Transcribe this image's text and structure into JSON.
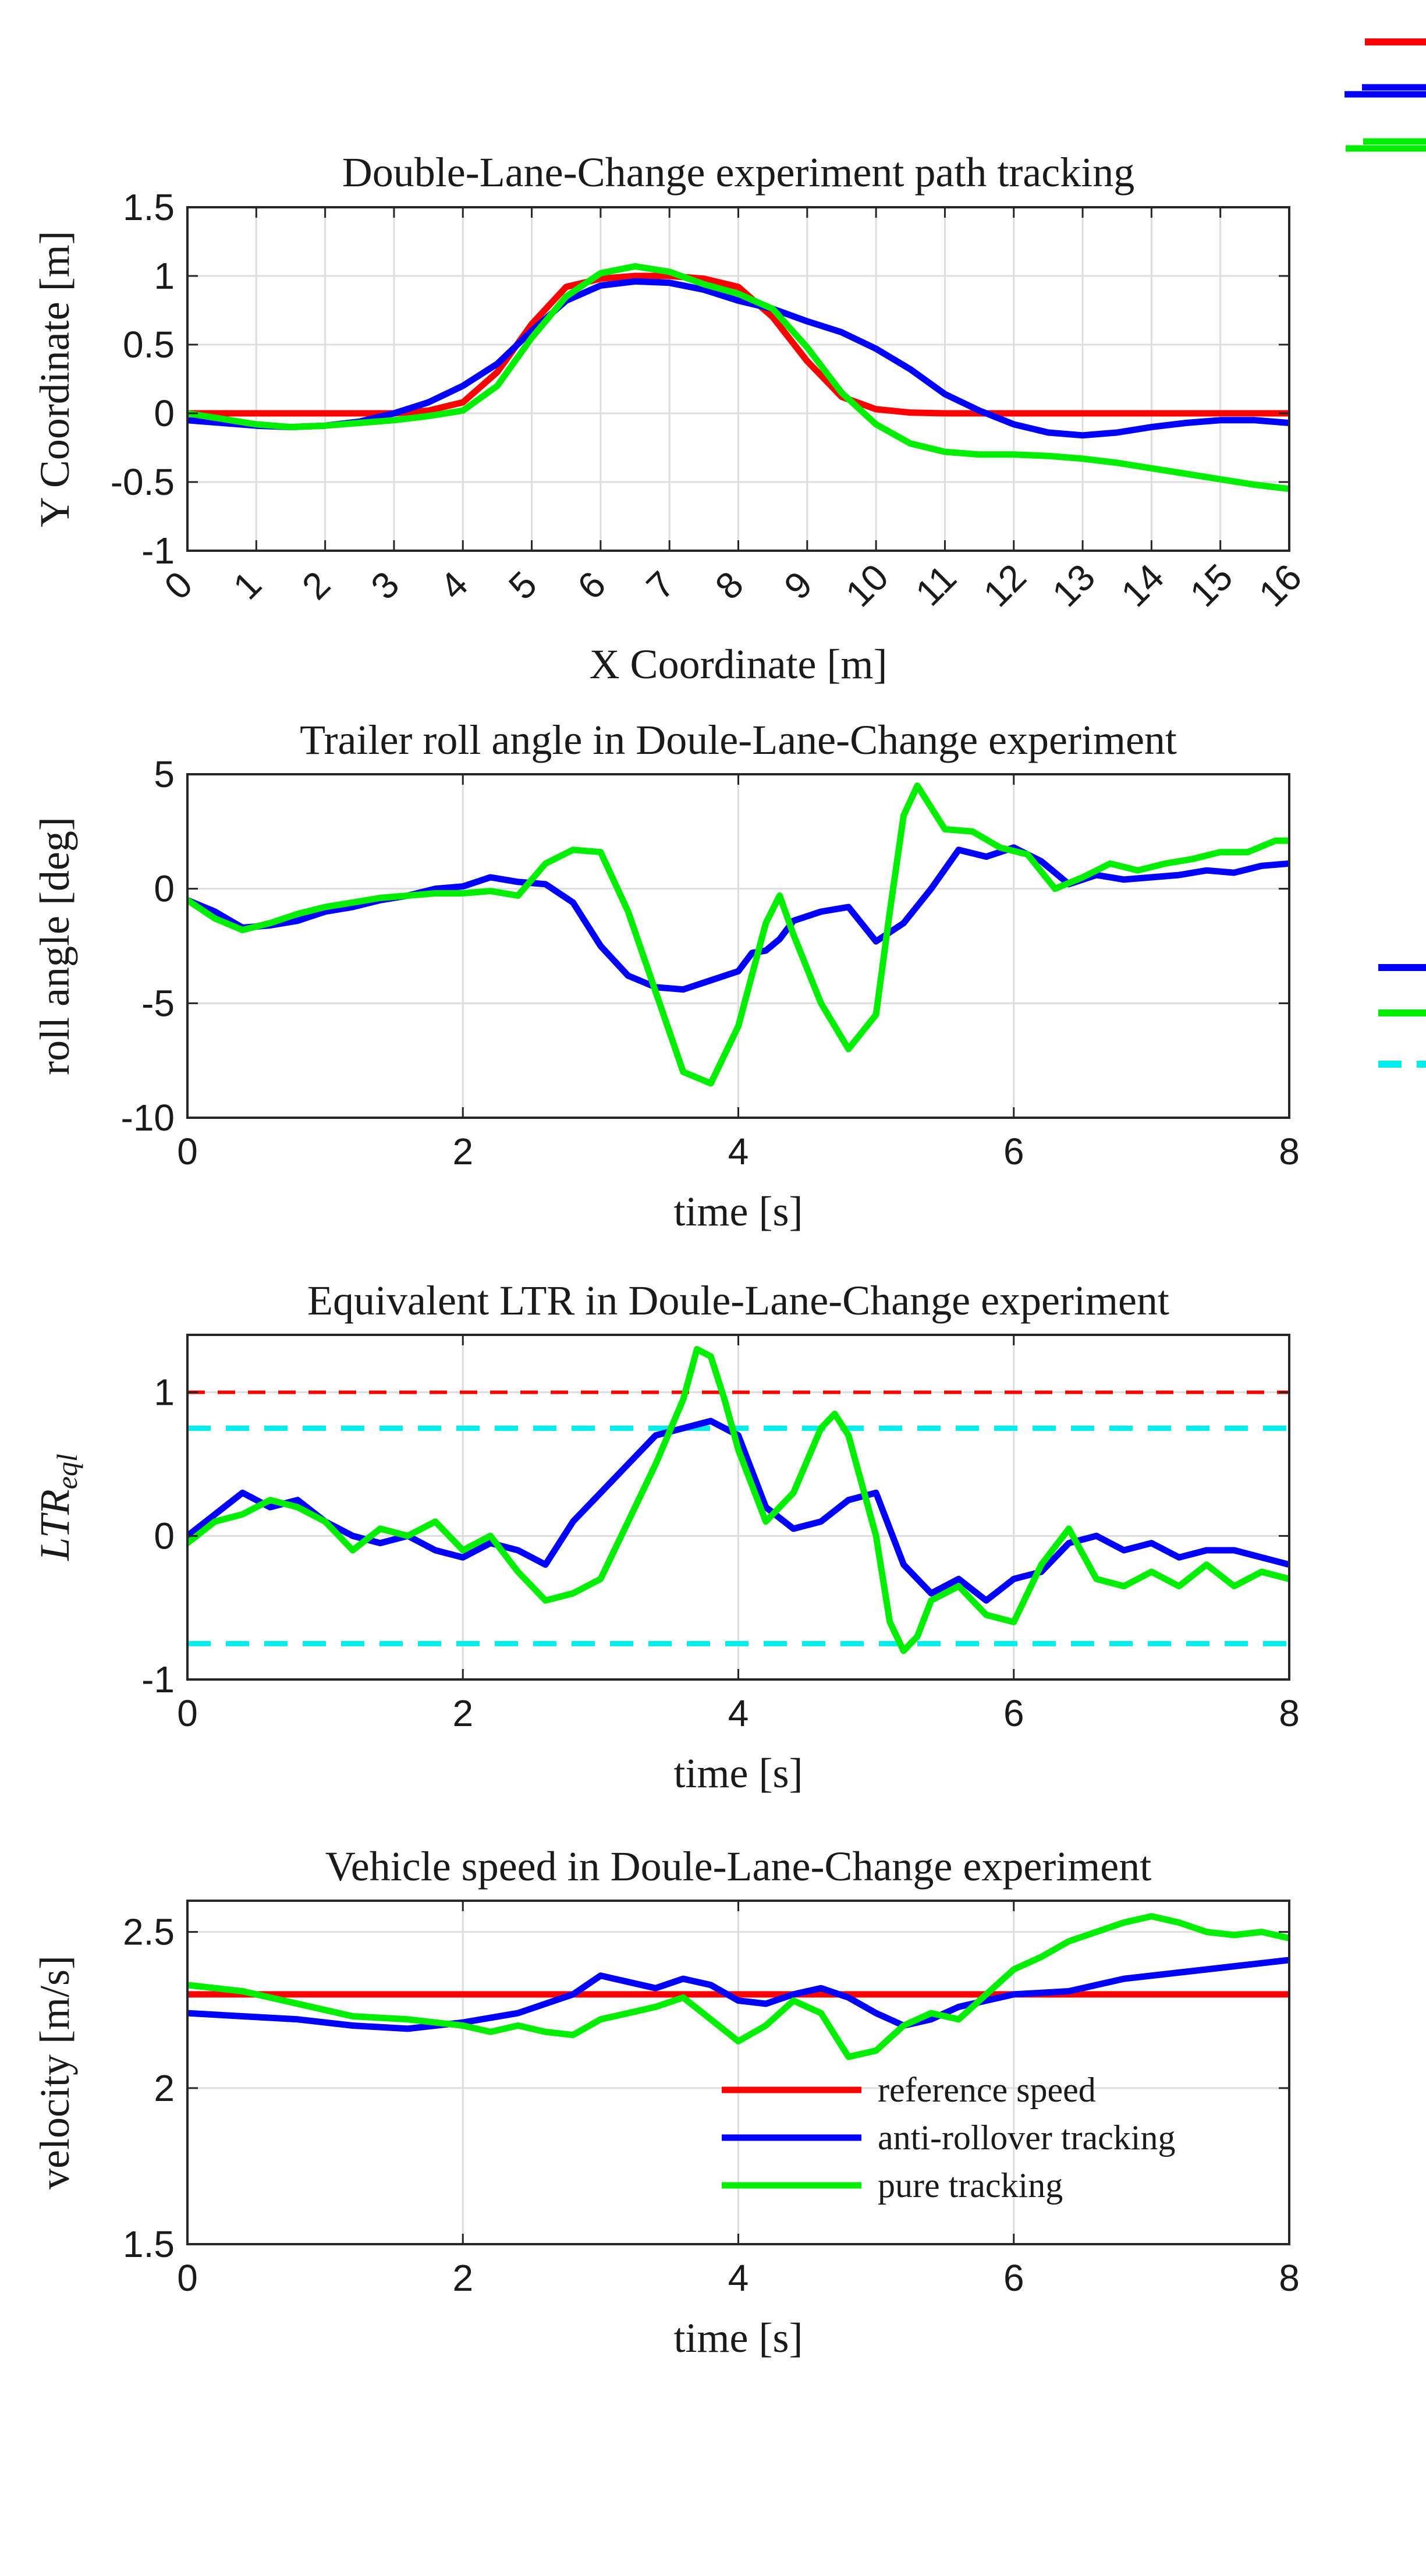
{
  "chart_data": [
    {
      "type": "line",
      "title": "Double-Lane-Change experiment path tracking",
      "xlabel": "X Coordinate [m]",
      "ylabel": "Y Coordinate [m]",
      "xlim": [
        0,
        16
      ],
      "ylim": [
        -1,
        1.5
      ],
      "xticks": [
        0,
        1,
        2,
        3,
        4,
        5,
        6,
        7,
        8,
        9,
        10,
        11,
        12,
        13,
        14,
        15,
        16
      ],
      "xtick_labels": [
        "0",
        "1",
        "2",
        "3",
        "4",
        "5",
        "6",
        "7",
        "8",
        "9",
        "10",
        "11",
        "12",
        "13",
        "14",
        "15",
        "16"
      ],
      "yticks": [
        -1,
        -0.5,
        0,
        0.5,
        1,
        1.5
      ],
      "ytick_labels": [
        "-1",
        "-0.5",
        "0",
        "0.5",
        "1",
        "1.5"
      ],
      "grid": true,
      "series": [
        {
          "color": "#ff0000",
          "x": [
            0,
            1,
            2,
            3,
            3.5,
            4,
            4.5,
            5,
            5.5,
            6,
            6.5,
            7,
            7.5,
            8,
            8.5,
            9,
            9.5,
            10,
            10.5,
            11,
            12,
            13,
            14,
            15,
            16
          ],
          "y": [
            0,
            0,
            0,
            0,
            0.02,
            0.08,
            0.3,
            0.65,
            0.92,
            0.98,
            1.0,
            1.0,
            0.98,
            0.92,
            0.7,
            0.38,
            0.12,
            0.03,
            0.005,
            0,
            0,
            0,
            0,
            0,
            0
          ]
        },
        {
          "color": "#0000ff",
          "x": [
            0,
            0.5,
            1,
            1.5,
            2,
            2.5,
            3,
            3.5,
            4,
            4.5,
            5,
            5.5,
            6,
            6.5,
            7,
            7.5,
            8,
            8.5,
            9,
            9.5,
            10,
            10.5,
            11,
            11.5,
            12,
            12.5,
            13,
            13.5,
            14,
            14.5,
            15,
            15.5,
            16
          ],
          "y": [
            -0.05,
            -0.07,
            -0.09,
            -0.1,
            -0.09,
            -0.06,
            0,
            0.08,
            0.2,
            0.36,
            0.6,
            0.82,
            0.93,
            0.96,
            0.95,
            0.9,
            0.82,
            0.76,
            0.67,
            0.59,
            0.47,
            0.32,
            0.14,
            0.02,
            -0.08,
            -0.14,
            -0.16,
            -0.14,
            -0.1,
            -0.07,
            -0.05,
            -0.05,
            -0.07
          ]
        },
        {
          "color": "#00ee00",
          "x": [
            0,
            0.5,
            1,
            1.5,
            2,
            2.5,
            3,
            3.5,
            4,
            4.5,
            5,
            5.5,
            6,
            6.5,
            7,
            7.5,
            8,
            8.5,
            9,
            9.5,
            10,
            10.5,
            11,
            11.5,
            12,
            12.5,
            13,
            13.5,
            14,
            14.5,
            15,
            15.5,
            16
          ],
          "y": [
            0,
            -0.04,
            -0.08,
            -0.1,
            -0.09,
            -0.07,
            -0.05,
            -0.02,
            0.02,
            0.2,
            0.55,
            0.85,
            1.02,
            1.07,
            1.03,
            0.94,
            0.87,
            0.76,
            0.48,
            0.15,
            -0.08,
            -0.22,
            -0.28,
            -0.3,
            -0.3,
            -0.31,
            -0.33,
            -0.36,
            -0.4,
            -0.44,
            -0.48,
            -0.52,
            -0.55
          ]
        }
      ]
    },
    {
      "type": "line",
      "title": "Trailer roll angle in Doule-Lane-Change experiment",
      "xlabel": "time [s]",
      "ylabel": "roll angle [deg]",
      "xlim": [
        0,
        8
      ],
      "ylim": [
        -10,
        5
      ],
      "xticks": [
        0,
        2,
        4,
        6,
        8
      ],
      "xtick_labels": [
        "0",
        "2",
        "4",
        "6",
        "8"
      ],
      "yticks": [
        -10,
        -5,
        0,
        5
      ],
      "ytick_labels": [
        "-10",
        "-5",
        "0",
        "5"
      ],
      "grid": true,
      "series": [
        {
          "color": "#0000ff",
          "x": [
            0,
            0.2,
            0.4,
            0.6,
            0.8,
            1.0,
            1.2,
            1.4,
            1.6,
            1.8,
            2.0,
            2.2,
            2.4,
            2.6,
            2.8,
            3.0,
            3.2,
            3.4,
            3.6,
            3.8,
            4.0,
            4.1,
            4.2,
            4.3,
            4.4,
            4.6,
            4.8,
            5.0,
            5.2,
            5.4,
            5.6,
            5.8,
            6.0,
            6.2,
            6.4,
            6.6,
            6.8,
            7.0,
            7.2,
            7.4,
            7.6,
            7.8,
            8.0
          ],
          "y": [
            -0.5,
            -1.0,
            -1.7,
            -1.6,
            -1.4,
            -1.0,
            -0.8,
            -0.5,
            -0.3,
            0,
            0.1,
            0.5,
            0.3,
            0.2,
            -0.6,
            -2.5,
            -3.8,
            -4.3,
            -4.4,
            -4.0,
            -3.6,
            -2.8,
            -2.7,
            -2.2,
            -1.4,
            -1.0,
            -0.8,
            -2.3,
            -1.5,
            0,
            1.7,
            1.4,
            1.8,
            1.2,
            0.2,
            0.6,
            0.4,
            0.5,
            0.6,
            0.8,
            0.7,
            1.0,
            1.1
          ]
        },
        {
          "color": "#00ee00",
          "x": [
            0,
            0.2,
            0.4,
            0.6,
            0.8,
            1.0,
            1.2,
            1.4,
            1.6,
            1.8,
            2.0,
            2.2,
            2.4,
            2.6,
            2.8,
            3.0,
            3.2,
            3.4,
            3.6,
            3.8,
            4.0,
            4.2,
            4.3,
            4.4,
            4.6,
            4.8,
            5.0,
            5.1,
            5.2,
            5.3,
            5.5,
            5.7,
            5.9,
            6.1,
            6.3,
            6.5,
            6.7,
            6.9,
            7.1,
            7.3,
            7.5,
            7.7,
            7.9,
            8.0
          ],
          "y": [
            -0.5,
            -1.3,
            -1.8,
            -1.5,
            -1.1,
            -0.8,
            -0.6,
            -0.4,
            -0.3,
            -0.2,
            -0.2,
            -0.1,
            -0.3,
            1.1,
            1.7,
            1.6,
            -1.0,
            -4.5,
            -8.0,
            -8.5,
            -6.0,
            -1.5,
            -0.3,
            -2.0,
            -5.0,
            -7.0,
            -5.5,
            -1.0,
            3.2,
            4.5,
            2.6,
            2.5,
            1.8,
            1.5,
            0,
            0.5,
            1.1,
            0.8,
            1.1,
            1.3,
            1.6,
            1.6,
            2.1,
            2.1
          ]
        }
      ]
    },
    {
      "type": "line",
      "title": "Equivalent LTR in Doule-Lane-Change experiment",
      "xlabel": "time [s]",
      "ylabel": "LTR",
      "ylabel_sub": "eql",
      "xlim": [
        0,
        8
      ],
      "ylim": [
        -1,
        1.4
      ],
      "xticks": [
        0,
        2,
        4,
        6,
        8
      ],
      "xtick_labels": [
        "0",
        "2",
        "4",
        "6",
        "8"
      ],
      "yticks": [
        -1,
        0,
        1
      ],
      "ytick_labels": [
        "-1",
        "0",
        "1"
      ],
      "grid": true,
      "reference_lines": [
        {
          "color": "#ff0000",
          "y": 1.0,
          "style": "dashed"
        },
        {
          "color": "#00eeee",
          "y": 0.75,
          "style": "dashed"
        },
        {
          "color": "#00eeee",
          "y": -0.75,
          "style": "dashed"
        }
      ],
      "series": [
        {
          "color": "#0000ff",
          "x": [
            0,
            0.2,
            0.4,
            0.6,
            0.8,
            1.0,
            1.2,
            1.4,
            1.6,
            1.8,
            2.0,
            2.2,
            2.4,
            2.6,
            2.8,
            3.0,
            3.2,
            3.4,
            3.6,
            3.8,
            4.0,
            4.2,
            4.4,
            4.6,
            4.8,
            5.0,
            5.2,
            5.4,
            5.6,
            5.8,
            6.0,
            6.2,
            6.4,
            6.6,
            6.8,
            7.0,
            7.2,
            7.4,
            7.6,
            7.8,
            8.0
          ],
          "y": [
            0,
            0.15,
            0.3,
            0.2,
            0.25,
            0.1,
            0,
            -0.05,
            0,
            -0.1,
            -0.15,
            -0.05,
            -0.1,
            -0.2,
            0.1,
            0.3,
            0.5,
            0.7,
            0.75,
            0.8,
            0.7,
            0.2,
            0.05,
            0.1,
            0.25,
            0.3,
            -0.2,
            -0.4,
            -0.3,
            -0.45,
            -0.3,
            -0.25,
            -0.05,
            0,
            -0.1,
            -0.05,
            -0.15,
            -0.1,
            -0.1,
            -0.15,
            -0.2
          ]
        },
        {
          "color": "#00ee00",
          "x": [
            0,
            0.2,
            0.4,
            0.6,
            0.8,
            1.0,
            1.2,
            1.4,
            1.6,
            1.8,
            2.0,
            2.2,
            2.4,
            2.6,
            2.8,
            3.0,
            3.2,
            3.4,
            3.6,
            3.7,
            3.8,
            3.9,
            4.0,
            4.2,
            4.4,
            4.6,
            4.7,
            4.8,
            5.0,
            5.1,
            5.2,
            5.3,
            5.4,
            5.6,
            5.8,
            6.0,
            6.2,
            6.4,
            6.6,
            6.8,
            7.0,
            7.2,
            7.4,
            7.6,
            7.8,
            8.0
          ],
          "y": [
            -0.05,
            0.1,
            0.15,
            0.25,
            0.2,
            0.1,
            -0.1,
            0.05,
            0,
            0.1,
            -0.1,
            0,
            -0.25,
            -0.45,
            -0.4,
            -0.3,
            0.1,
            0.5,
            0.95,
            1.3,
            1.25,
            0.95,
            0.6,
            0.1,
            0.3,
            0.75,
            0.85,
            0.7,
            0,
            -0.6,
            -0.8,
            -0.7,
            -0.45,
            -0.35,
            -0.55,
            -0.6,
            -0.2,
            0.05,
            -0.3,
            -0.35,
            -0.25,
            -0.35,
            -0.2,
            -0.35,
            -0.25,
            -0.3
          ]
        }
      ]
    },
    {
      "type": "line",
      "title": "Vehicle speed in Doule-Lane-Change experiment",
      "xlabel": "time [s]",
      "ylabel": "velocity [m/s]",
      "xlim": [
        0,
        8
      ],
      "ylim": [
        1.5,
        2.6
      ],
      "xticks": [
        0,
        2,
        4,
        6,
        8
      ],
      "xtick_labels": [
        "0",
        "2",
        "4",
        "6",
        "8"
      ],
      "yticks": [
        1.5,
        2,
        2.5
      ],
      "ytick_labels": [
        "1.5",
        "2",
        "2.5"
      ],
      "grid": true,
      "legend_position": "bottom-right",
      "series": [
        {
          "name": "reference speed",
          "color": "#ff0000",
          "x": [
            0,
            8
          ],
          "y": [
            2.3,
            2.3
          ]
        },
        {
          "name": "anti-rollover tracking",
          "color": "#0000ff",
          "x": [
            0,
            0.4,
            0.8,
            1.2,
            1.6,
            2.0,
            2.4,
            2.8,
            3.0,
            3.2,
            3.4,
            3.6,
            3.8,
            4.0,
            4.2,
            4.4,
            4.6,
            4.8,
            5.0,
            5.2,
            5.4,
            5.6,
            5.8,
            6.0,
            6.4,
            6.8,
            7.2,
            7.6,
            8.0
          ],
          "y": [
            2.24,
            2.23,
            2.22,
            2.2,
            2.19,
            2.21,
            2.24,
            2.3,
            2.36,
            2.34,
            2.32,
            2.35,
            2.33,
            2.28,
            2.27,
            2.3,
            2.32,
            2.29,
            2.24,
            2.2,
            2.22,
            2.26,
            2.28,
            2.3,
            2.31,
            2.35,
            2.37,
            2.39,
            2.41
          ]
        },
        {
          "name": "pure tracking",
          "color": "#00ee00",
          "x": [
            0,
            0.4,
            0.8,
            1.2,
            1.6,
            2.0,
            2.2,
            2.4,
            2.6,
            2.8,
            3.0,
            3.2,
            3.4,
            3.6,
            3.8,
            4.0,
            4.2,
            4.4,
            4.6,
            4.8,
            5.0,
            5.2,
            5.4,
            5.6,
            5.8,
            6.0,
            6.2,
            6.4,
            6.6,
            6.8,
            7.0,
            7.2,
            7.4,
            7.6,
            7.8,
            8.0
          ],
          "y": [
            2.33,
            2.31,
            2.27,
            2.23,
            2.22,
            2.2,
            2.18,
            2.2,
            2.18,
            2.17,
            2.22,
            2.24,
            2.26,
            2.29,
            2.22,
            2.15,
            2.2,
            2.28,
            2.24,
            2.1,
            2.12,
            2.2,
            2.24,
            2.22,
            2.3,
            2.38,
            2.42,
            2.47,
            2.5,
            2.53,
            2.55,
            2.53,
            2.5,
            2.49,
            2.5,
            2.48
          ]
        }
      ]
    }
  ],
  "side_legend_colors": [
    "#ff0000",
    "#0000ff",
    "#00ee00",
    "#0000ff",
    "#00ee00",
    "#00eeee"
  ]
}
